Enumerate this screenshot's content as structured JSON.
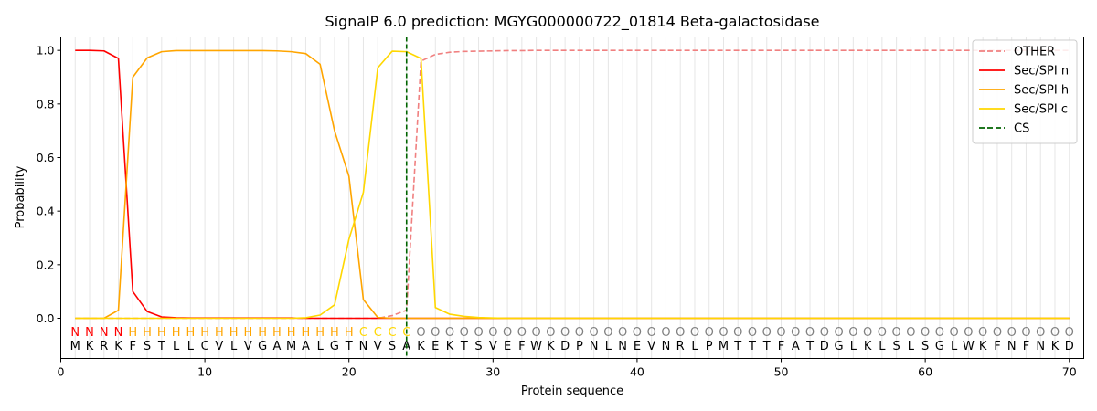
{
  "chart_data": {
    "type": "line",
    "title": "SignalP 6.0 prediction: MGYG000000722_01814 Beta-galactosidase",
    "xlabel": "Protein sequence",
    "ylabel": "Probability",
    "xlim": [
      0,
      71
    ],
    "ylim": [
      -0.15,
      1.05
    ],
    "xticks": [
      0,
      10,
      20,
      30,
      40,
      50,
      60,
      70
    ],
    "yticks": [
      0.0,
      0.2,
      0.4,
      0.6,
      0.8,
      1.0
    ],
    "legend_position": "top-right",
    "grid": "vertical lines at each residue position",
    "sequence": [
      "M",
      "K",
      "R",
      "K",
      "F",
      "S",
      "T",
      "L",
      "L",
      "C",
      "V",
      "L",
      "V",
      "G",
      "A",
      "M",
      "A",
      "L",
      "G",
      "T",
      "N",
      "V",
      "S",
      "A",
      "K",
      "E",
      "K",
      "T",
      "S",
      "V",
      "E",
      "F",
      "W",
      "K",
      "D",
      "P",
      "N",
      "L",
      "N",
      "E",
      "V",
      "N",
      "R",
      "L",
      "P",
      "M",
      "T",
      "T",
      "T",
      "F",
      "A",
      "T",
      "D",
      "G",
      "L",
      "K",
      "L",
      "S",
      "L",
      "S",
      "G",
      "L",
      "W",
      "K",
      "F",
      "N",
      "F",
      "N",
      "K",
      "D"
    ],
    "labels": [
      "N",
      "N",
      "N",
      "N",
      "H",
      "H",
      "H",
      "H",
      "H",
      "H",
      "H",
      "H",
      "H",
      "H",
      "H",
      "H",
      "H",
      "H",
      "H",
      "H",
      "C",
      "C",
      "C",
      "C",
      "O",
      "O",
      "O",
      "O",
      "O",
      "O",
      "O",
      "O",
      "O",
      "O",
      "O",
      "O",
      "O",
      "O",
      "O",
      "O",
      "O",
      "O",
      "O",
      "O",
      "O",
      "O",
      "O",
      "O",
      "O",
      "O",
      "O",
      "O",
      "O",
      "O",
      "O",
      "O",
      "O",
      "O",
      "O",
      "O",
      "O",
      "O",
      "O",
      "O",
      "O",
      "O",
      "O",
      "O",
      "O",
      "O"
    ],
    "label_colors": {
      "N": "#ff0000",
      "H": "#ffa500",
      "C": "#ffd700",
      "O": "#808080"
    },
    "series": [
      {
        "name": "OTHER",
        "color": "#f08080",
        "dash": true,
        "values": [
          0.0,
          0.0,
          0.0,
          0.0,
          0.0,
          0.0,
          0.0,
          0.0,
          0.0,
          0.0,
          0.0,
          0.0,
          0.0,
          0.0,
          0.0,
          0.0,
          0.0,
          0.0,
          0.0,
          0.0,
          0.0,
          0.0,
          0.01,
          0.03,
          0.96,
          0.985,
          0.993,
          0.996,
          0.997,
          0.998,
          0.999,
          0.999,
          1.0,
          1.0,
          1.0,
          1.0,
          1.0,
          1.0,
          1.0,
          1.0,
          1.0,
          1.0,
          1.0,
          1.0,
          1.0,
          1.0,
          1.0,
          1.0,
          1.0,
          1.0,
          1.0,
          1.0,
          1.0,
          1.0,
          1.0,
          1.0,
          1.0,
          1.0,
          1.0,
          1.0,
          1.0,
          1.0,
          1.0,
          1.0,
          1.0,
          1.0,
          1.0,
          1.0,
          1.0,
          1.0
        ]
      },
      {
        "name": "Sec/SPI n",
        "color": "#ff0000",
        "dash": false,
        "values": [
          1.0,
          1.0,
          0.998,
          0.97,
          0.1,
          0.025,
          0.005,
          0.002,
          0.001,
          0.001,
          0.001,
          0.001,
          0.001,
          0.001,
          0.001,
          0.001,
          0.0,
          0.0,
          0.0,
          0.0,
          0.0,
          0.0,
          0.0,
          0.0,
          0.0,
          0.0,
          0.0,
          0.0,
          0.0,
          0.0,
          0.0,
          0.0,
          0.0,
          0.0,
          0.0,
          0.0,
          0.0,
          0.0,
          0.0,
          0.0,
          0.0,
          0.0,
          0.0,
          0.0,
          0.0,
          0.0,
          0.0,
          0.0,
          0.0,
          0.0,
          0.0,
          0.0,
          0.0,
          0.0,
          0.0,
          0.0,
          0.0,
          0.0,
          0.0,
          0.0,
          0.0,
          0.0,
          0.0,
          0.0,
          0.0,
          0.0,
          0.0,
          0.0,
          0.0,
          0.0
        ]
      },
      {
        "name": "Sec/SPI h",
        "color": "#ffa500",
        "dash": false,
        "values": [
          0.0,
          0.0,
          0.0,
          0.03,
          0.9,
          0.972,
          0.995,
          0.999,
          0.999,
          0.999,
          0.999,
          0.999,
          0.999,
          0.999,
          0.998,
          0.995,
          0.988,
          0.948,
          0.7,
          0.53,
          0.07,
          0.003,
          0.0,
          0.0,
          0.0,
          0.0,
          0.0,
          0.0,
          0.0,
          0.0,
          0.0,
          0.0,
          0.0,
          0.0,
          0.0,
          0.0,
          0.0,
          0.0,
          0.0,
          0.0,
          0.0,
          0.0,
          0.0,
          0.0,
          0.0,
          0.0,
          0.0,
          0.0,
          0.0,
          0.0,
          0.0,
          0.0,
          0.0,
          0.0,
          0.0,
          0.0,
          0.0,
          0.0,
          0.0,
          0.0,
          0.0,
          0.0,
          0.0,
          0.0,
          0.0,
          0.0,
          0.0,
          0.0,
          0.0,
          0.0
        ]
      },
      {
        "name": "Sec/SPI c",
        "color": "#ffd700",
        "dash": false,
        "values": [
          0.0,
          0.0,
          0.0,
          0.0,
          0.0,
          0.0,
          0.0,
          0.0,
          0.0,
          0.0,
          0.0,
          0.0,
          0.0,
          0.0,
          0.0,
          0.0,
          0.002,
          0.012,
          0.05,
          0.295,
          0.47,
          0.935,
          0.997,
          0.995,
          0.97,
          0.04,
          0.015,
          0.007,
          0.003,
          0.001,
          0.0,
          0.0,
          0.0,
          0.0,
          0.0,
          0.0,
          0.0,
          0.0,
          0.0,
          0.0,
          0.0,
          0.0,
          0.0,
          0.0,
          0.0,
          0.0,
          0.0,
          0.0,
          0.0,
          0.0,
          0.0,
          0.0,
          0.0,
          0.0,
          0.0,
          0.0,
          0.0,
          0.0,
          0.0,
          0.0,
          0.0,
          0.0,
          0.0,
          0.0,
          0.0,
          0.0,
          0.0,
          0.0,
          0.0,
          0.0
        ]
      }
    ],
    "cleavage_site": {
      "name": "CS",
      "x": 24,
      "color": "#006400"
    }
  }
}
